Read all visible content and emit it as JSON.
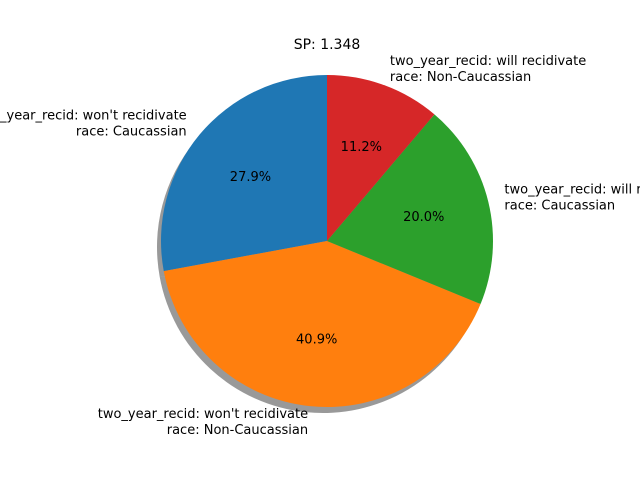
{
  "chart_data": {
    "type": "pie",
    "title": "SP: 1.348",
    "start_angle_deg": 90,
    "direction": "counterclockwise",
    "shadow": true,
    "slices": [
      {
        "label_line1": "two_year_recid: won't recidivate",
        "label_line2": "race: Caucassian",
        "value": 27.9,
        "pct_label": "27.9%",
        "color": "#1f77b4"
      },
      {
        "label_line1": "two_year_recid: won't recidivate",
        "label_line2": "race: Non-Caucassian",
        "value": 40.9,
        "pct_label": "40.9%",
        "color": "#ff7f0e"
      },
      {
        "label_line1": "two_year_recid: will recidivate",
        "label_line2": "race: Caucassian",
        "value": 20.0,
        "pct_label": "20.0%",
        "color": "#2ca02c"
      },
      {
        "label_line1": "two_year_recid: will recidivate",
        "label_line2": "race: Non-Caucassian",
        "value": 11.2,
        "pct_label": "11.2%",
        "color": "#d62728"
      }
    ]
  }
}
